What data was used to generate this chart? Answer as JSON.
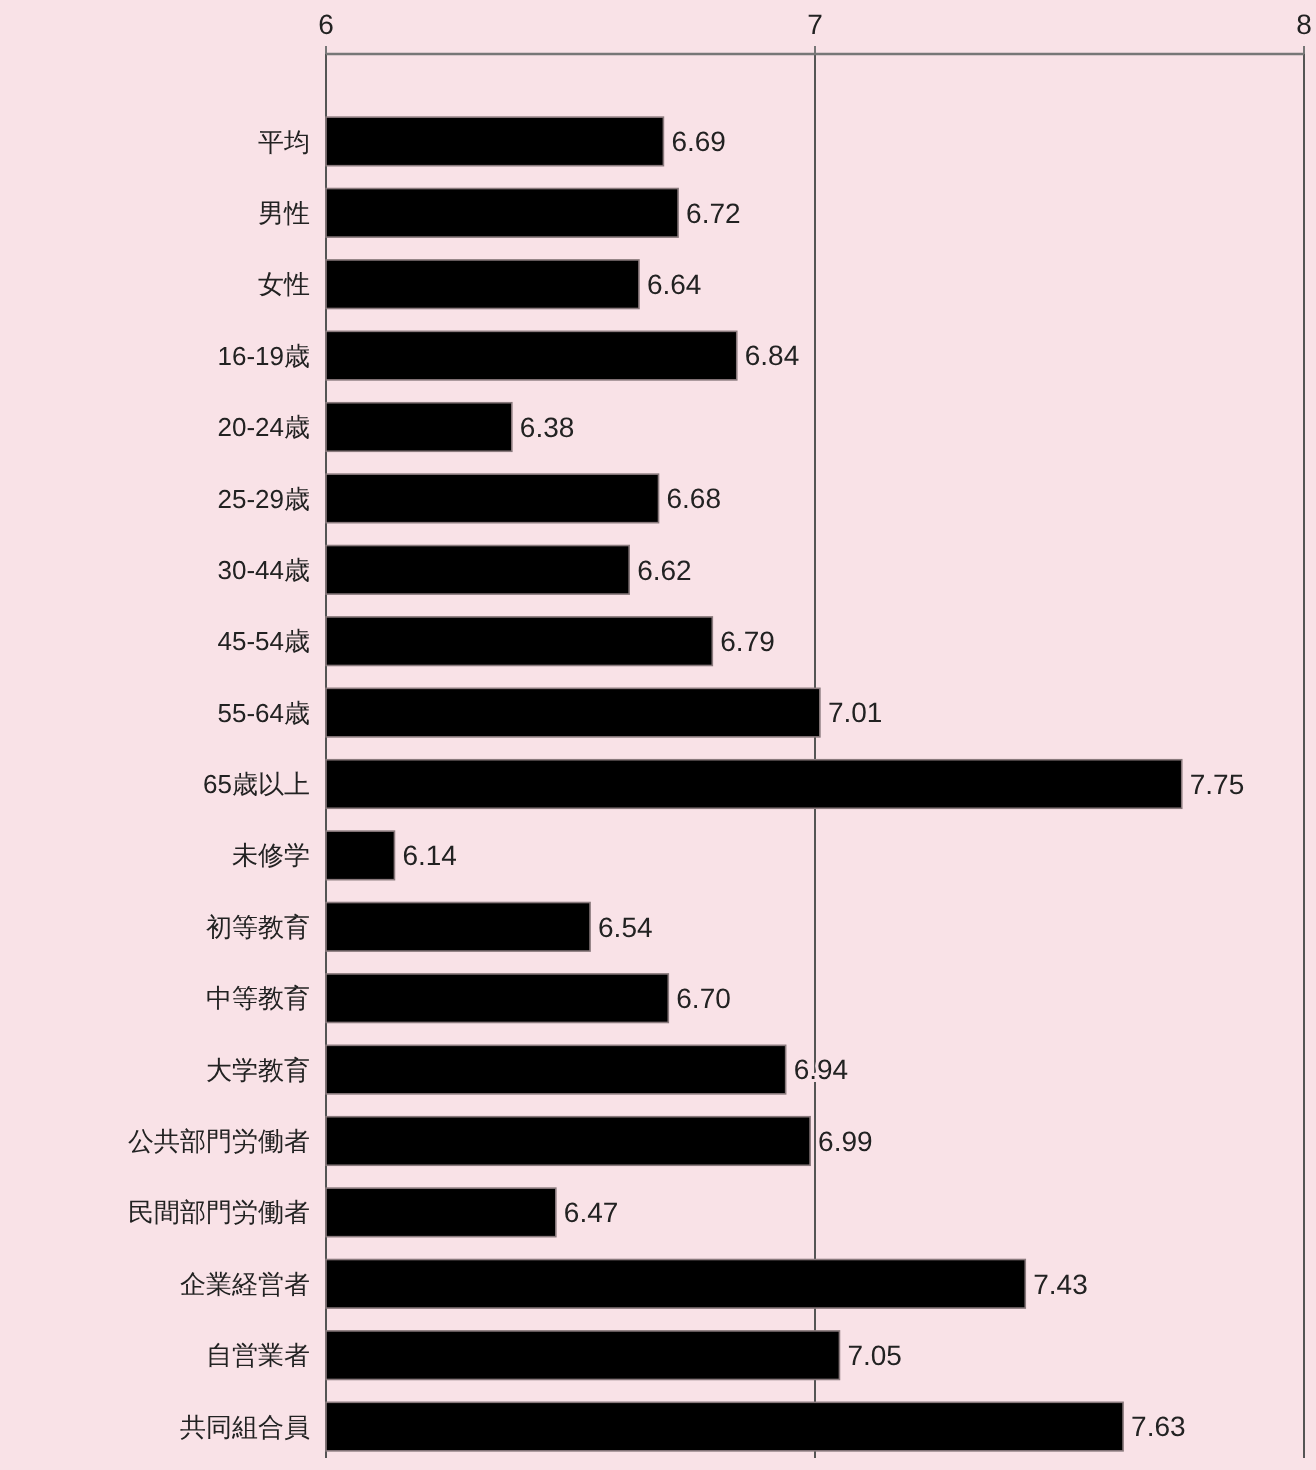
{
  "chart_data": {
    "type": "bar",
    "orientation": "horizontal",
    "categories": [
      "平均",
      "男性",
      "女性",
      "16-19歳",
      "20-24歳",
      "25-29歳",
      "30-44歳",
      "45-54歳",
      "55-64歳",
      "65歳以上",
      "未修学",
      "初等教育",
      "中等教育",
      "大学教育",
      "公共部門労働者",
      "民間部門労働者",
      "企業経営者",
      "自営業者",
      "共同組合員"
    ],
    "values": [
      6.69,
      6.72,
      6.64,
      6.84,
      6.38,
      6.68,
      6.62,
      6.79,
      7.01,
      7.75,
      6.14,
      6.54,
      6.7,
      6.94,
      6.99,
      6.47,
      7.43,
      7.05,
      7.63
    ],
    "value_labels": [
      "6.69",
      "6.72",
      "6.64",
      "6.84",
      "6.38",
      "6.68",
      "6.62",
      "6.79",
      "7.01",
      "7.75",
      "6.14",
      "6.54",
      "6.70",
      "6.94",
      "6.99",
      "6.47",
      "7.43",
      "7.05",
      "7.63"
    ],
    "color": "#000000",
    "xlim": [
      6,
      8
    ],
    "xticks": [
      6,
      7,
      8
    ],
    "grid": "x"
  }
}
